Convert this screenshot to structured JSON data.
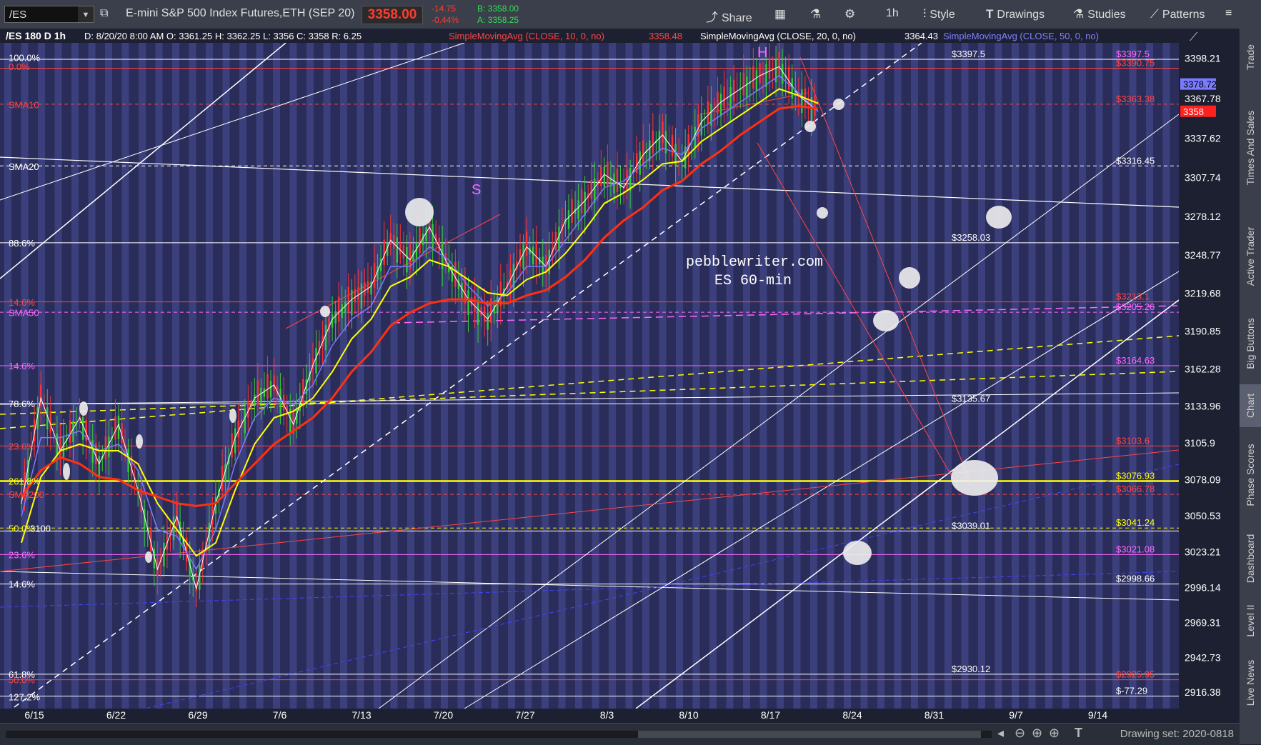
{
  "toolbar": {
    "symbol": "/ES",
    "description": "E-mini S&P 500 Index Futures,ETH (SEP 20)",
    "last_price": "3358.00",
    "change": "-14.75",
    "change_pct": "-0.44%",
    "bid": "B: 3358.00",
    "ask": "A: 3358.25",
    "share": "Share",
    "timeframe": "1h",
    "style": "Style",
    "drawings": "Drawings",
    "studies": "Studies",
    "patterns": "Patterns"
  },
  "header": {
    "symbol_frame": "/ES 180 D 1h",
    "ohlc": "D: 8/20/20 8:00 AM  O: 3361.25  H: 3362.25  L: 3356  C: 3358  R: 6.25",
    "sma10_label": "SimpleMovingAvg (CLOSE, 10, 0, no)",
    "sma10_value": "3358.48",
    "sma20_label": "SimpleMovingAvg (CLOSE, 20, 0, no)",
    "sma20_value": "3364.43",
    "sma50_label": "SimpleMovingAvg (CLOSE, 50, 0, no)"
  },
  "chart_data": {
    "type": "candlestick",
    "annotation_text": [
      "pebblewriter.com",
      "ES  60-min"
    ],
    "pattern_labels": [
      "S",
      "H"
    ],
    "x_ticks": [
      "6/15",
      "6/22",
      "6/29",
      "7/6",
      "7/13",
      "7/20",
      "7/27",
      "8/3",
      "8/10",
      "8/17",
      "8/24",
      "8/31",
      "9/7",
      "9/14"
    ],
    "y_ticks": [
      "3398.21",
      "3367.78",
      "3337.62",
      "3307.74",
      "3278.12",
      "3248.77",
      "3219.68",
      "3190.85",
      "3162.28",
      "3133.96",
      "3105.9",
      "3078.09",
      "3050.53",
      "3023.21",
      "2996.14",
      "2969.31",
      "2942.73",
      "2916.38"
    ],
    "y_range": [
      2904,
      3410
    ],
    "price_tags": [
      {
        "text": "3378.72",
        "bg": "#7b7bff",
        "fg": "#000000"
      },
      {
        "text": "3358",
        "bg": "#ff2020",
        "fg": "#ffffff"
      }
    ],
    "left_level_labels": [
      {
        "text": "100.0%",
        "color": "#ffffff"
      },
      {
        "text": "0.0%",
        "color": "#ff4444"
      },
      {
        "text": "SMA10",
        "color": "#ff4444"
      },
      {
        "text": "SMA20",
        "color": "#ffffff"
      },
      {
        "text": "88.6%",
        "color": "#ffffff"
      },
      {
        "text": "14.6%",
        "color": "#ff4444"
      },
      {
        "text": "SMA50",
        "color": "#ff66ff"
      },
      {
        "text": "14.6%",
        "color": "#ff66ff"
      },
      {
        "text": "78.6%",
        "color": "#ffffff"
      },
      {
        "text": "23.6%",
        "color": "#ff4444"
      },
      {
        "text": "261.8%",
        "color": "#ffff00"
      },
      {
        "text": "SMA200",
        "color": "#ff4444"
      },
      {
        "text": "50.0%",
        "color": "#ffff00"
      },
      {
        "text": "3100",
        "color": "#ffffff"
      },
      {
        "text": "23.6%",
        "color": "#ff66ff"
      },
      {
        "text": "14.6%",
        "color": "#ffffff"
      },
      {
        "text": "61.8%",
        "color": "#ffffff"
      },
      {
        "text": "50.0%",
        "color": "#ff4444"
      },
      {
        "text": "127.2%",
        "color": "#ffffff"
      }
    ],
    "levels": [
      {
        "price": 3397.5,
        "label": "$3397.5",
        "color": "#ffffff",
        "label2": "$3397.5",
        "color2": "#ff66ff"
      },
      {
        "price": 3390.75,
        "label": "$3390.75",
        "color": "#ff4444"
      },
      {
        "price": 3363.38,
        "label": "$3363.38",
        "color": "#ff4444",
        "dash": true
      },
      {
        "price": 3316.45,
        "label": "$3316.45",
        "color": "#ffffff",
        "dash": true
      },
      {
        "price": 3258.03,
        "label": "$3258.03",
        "color": "#ffffff"
      },
      {
        "price": 3213.1,
        "label": "$3213.1",
        "color": "#ff4444"
      },
      {
        "price": 3205.26,
        "label": "$3205.26",
        "color": "#ff66ff",
        "dash": true
      },
      {
        "price": 3164.63,
        "label": "$3164.63",
        "color": "#ff66ff"
      },
      {
        "price": 3135.67,
        "label": "$3135.67",
        "color": "#ffffff"
      },
      {
        "price": 3103.6,
        "label": "$3103.6",
        "color": "#ff4444"
      },
      {
        "price": 3076.93,
        "label": "$3076.93",
        "color": "#ffff00"
      },
      {
        "price": 3066.78,
        "label": "$3066.78",
        "color": "#ff4444",
        "dash": true
      },
      {
        "price": 3039.01,
        "label": "$3039.01",
        "color": "#ffffff"
      },
      {
        "price": 3041.24,
        "label": "$3041.24",
        "color": "#ffff00",
        "dash": true
      },
      {
        "price": 3021.08,
        "label": "$3021.08",
        "color": "#ff66ff"
      },
      {
        "price": 2998.66,
        "label": "$2998.66",
        "color": "#ffffff"
      },
      {
        "price": 2930.12,
        "label": "$2930.12",
        "color": "#ffffff"
      },
      {
        "price": 2925.95,
        "label": "$2925.95",
        "color": "#ff4444"
      },
      {
        "price": 2913.5,
        "label": "$-77.29",
        "color": "#ffffff"
      }
    ],
    "series": [
      {
        "name": "price",
        "values": [
          3060,
          3140,
          3100,
          3125,
          3090,
          3120,
          3070,
          3010,
          3050,
          2995,
          3060,
          3110,
          3140,
          3150,
          3120,
          3165,
          3200,
          3215,
          3225,
          3260,
          3245,
          3270,
          3240,
          3215,
          3200,
          3225,
          3255,
          3240,
          3275,
          3290,
          3310,
          3300,
          3325,
          3340,
          3320,
          3350,
          3365,
          3375,
          3385,
          3392,
          3370,
          3358
        ]
      },
      {
        "name": "SMA10",
        "values": [
          3050,
          3110,
          3110,
          3115,
          3100,
          3105,
          3085,
          3040,
          3035,
          3010,
          3040,
          3090,
          3125,
          3140,
          3135,
          3150,
          3180,
          3200,
          3210,
          3240,
          3240,
          3255,
          3245,
          3225,
          3210,
          3220,
          3240,
          3240,
          3260,
          3280,
          3300,
          3305,
          3318,
          3330,
          3325,
          3345,
          3355,
          3365,
          3375,
          3385,
          3372,
          3358
        ]
      },
      {
        "name": "SMA20",
        "values": [
          3030,
          3080,
          3100,
          3105,
          3100,
          3100,
          3090,
          3060,
          3040,
          3020,
          3030,
          3070,
          3105,
          3125,
          3130,
          3140,
          3160,
          3185,
          3200,
          3225,
          3232,
          3245,
          3240,
          3230,
          3220,
          3218,
          3230,
          3236,
          3250,
          3268,
          3288,
          3296,
          3306,
          3318,
          3320,
          3335,
          3345,
          3355,
          3365,
          3375,
          3370,
          3364
        ]
      },
      {
        "name": "SMA50",
        "values": [
          3065,
          3085,
          3095,
          3090,
          3080,
          3078,
          3070,
          3065,
          3060,
          3058,
          3060,
          3075,
          3090,
          3105,
          3115,
          3125,
          3140,
          3160,
          3175,
          3195,
          3205,
          3212,
          3215,
          3215,
          3212,
          3212,
          3218,
          3222,
          3232,
          3245,
          3262,
          3275,
          3285,
          3298,
          3305,
          3318,
          3328,
          3340,
          3350,
          3360,
          3362,
          3360
        ]
      }
    ]
  },
  "bottom": {
    "drawing_set": "Drawing set: 2020-0818"
  },
  "sidebar": {
    "tabs": [
      "Trade",
      "Times And Sales",
      "Active Trader",
      "Big Buttons",
      "Chart",
      "Phase Scores",
      "Dashboard",
      "Level II",
      "Live News"
    ]
  }
}
